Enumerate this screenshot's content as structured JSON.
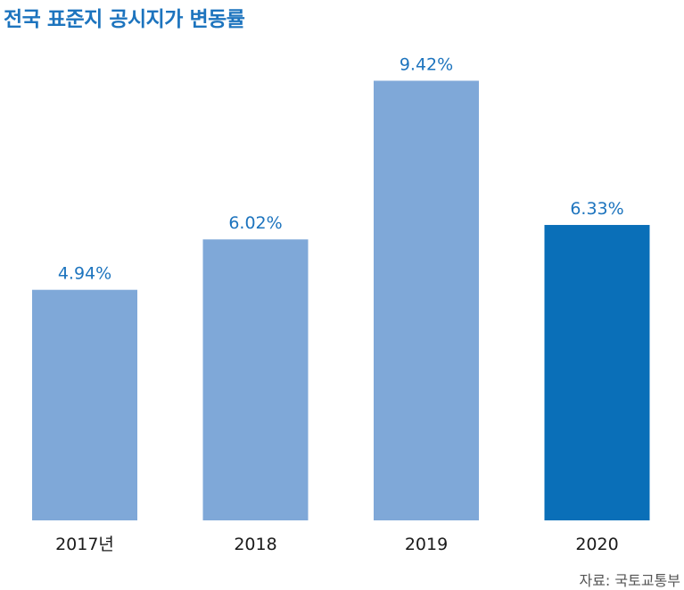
{
  "title": "전국 표준지 공시지가 변동률",
  "source": "자료: 국토교통부",
  "colors": {
    "bar": "#7fa8d8",
    "bar_highlight": "#0a6fb8",
    "label": "#1d74be"
  },
  "chart_data": {
    "type": "bar",
    "title": "전국 표준지 공시지가 변동률",
    "categories": [
      "2017년",
      "2018",
      "2019",
      "2020"
    ],
    "values": [
      4.94,
      6.02,
      9.42,
      6.33
    ],
    "data_labels": [
      "4.94%",
      "6.02%",
      "9.42%",
      "6.33%"
    ],
    "highlight_index": 3,
    "ylim": [
      0,
      11.15
    ],
    "xlabel": "",
    "ylabel": "",
    "grid": false,
    "legend": "none"
  }
}
